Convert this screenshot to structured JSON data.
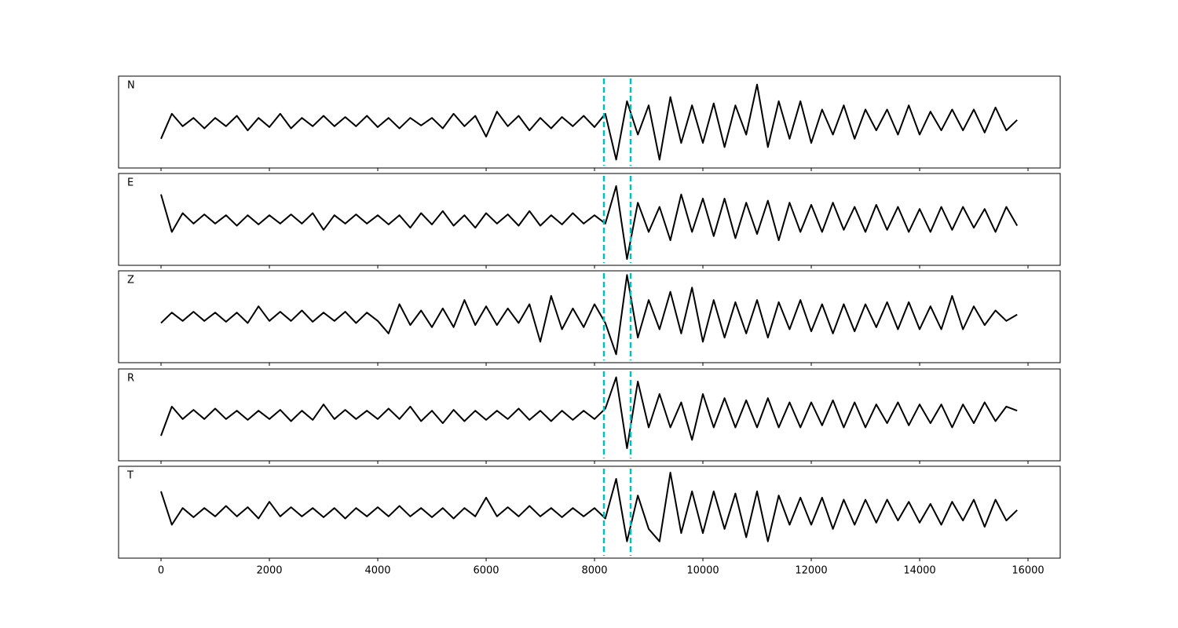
{
  "chart_data": [
    {
      "type": "line",
      "xlim": [
        -783,
        16594
      ],
      "xticks": [
        0,
        2000,
        4000,
        6000,
        8000,
        10000,
        12000,
        14000,
        16000
      ],
      "ylim": [
        -1.1,
        1.1
      ],
      "vlines": [
        8174,
        8667
      ],
      "vline_color": "#00bfbf",
      "x": [
        0,
        200,
        400,
        600,
        800,
        1000,
        1200,
        1400,
        1600,
        1800,
        2000,
        2200,
        2400,
        2600,
        2800,
        3000,
        3200,
        3400,
        3600,
        3800,
        4000,
        4200,
        4400,
        4600,
        4800,
        5000,
        5200,
        5400,
        5600,
        5800,
        6000,
        6200,
        6400,
        6600,
        6800,
        7000,
        7200,
        7400,
        7600,
        7800,
        8000,
        8200,
        8400,
        8600,
        8800,
        9000,
        9200,
        9400,
        9600,
        9800,
        10000,
        10200,
        10400,
        10600,
        10800,
        11000,
        11200,
        11400,
        11600,
        11800,
        12000,
        12200,
        12400,
        12600,
        12800,
        13000,
        13200,
        13400,
        13600,
        13800,
        14000,
        14200,
        14400,
        14600,
        14800,
        15000,
        15200,
        15400,
        15600,
        15800
      ],
      "series": [
        {
          "name": "N",
          "color": "#000000",
          "values": [
            -0.4,
            0.2,
            -0.1,
            0.1,
            -0.15,
            0.1,
            -0.1,
            0.15,
            -0.2,
            0.1,
            -0.12,
            0.2,
            -0.15,
            0.1,
            -0.1,
            0.15,
            -0.1,
            0.12,
            -0.1,
            0.15,
            -0.12,
            0.1,
            -0.15,
            0.1,
            -0.08,
            0.1,
            -0.15,
            0.2,
            -0.1,
            0.15,
            -0.35,
            0.25,
            -0.1,
            0.15,
            -0.2,
            0.1,
            -0.15,
            0.12,
            -0.1,
            0.15,
            -0.12,
            0.2,
            -0.9,
            0.5,
            -0.3,
            0.4,
            -0.9,
            0.6,
            -0.5,
            0.4,
            -0.5,
            0.45,
            -0.6,
            0.4,
            -0.3,
            0.9,
            -0.6,
            0.5,
            -0.4,
            0.5,
            -0.5,
            0.3,
            -0.3,
            0.4,
            -0.4,
            0.3,
            -0.2,
            0.3,
            -0.3,
            0.4,
            -0.3,
            0.25,
            -0.2,
            0.3,
            -0.2,
            0.3,
            -0.25,
            0.35,
            -0.2,
            0.05
          ]
        }
      ]
    },
    {
      "type": "line",
      "xlim": [
        -783,
        16594
      ],
      "xticks": [
        0,
        2000,
        4000,
        6000,
        8000,
        10000,
        12000,
        14000,
        16000
      ],
      "ylim": [
        -1.1,
        1.1
      ],
      "vlines": [
        8174,
        8667
      ],
      "vline_color": "#00bfbf",
      "x": [
        0,
        200,
        400,
        600,
        800,
        1000,
        1200,
        1400,
        1600,
        1800,
        2000,
        2200,
        2400,
        2600,
        2800,
        3000,
        3200,
        3400,
        3600,
        3800,
        4000,
        4200,
        4400,
        4600,
        4800,
        5000,
        5200,
        5400,
        5600,
        5800,
        6000,
        6200,
        6400,
        6600,
        6800,
        7000,
        7200,
        7400,
        7600,
        7800,
        8000,
        8200,
        8400,
        8600,
        8800,
        9000,
        9200,
        9400,
        9600,
        9800,
        10000,
        10200,
        10400,
        10600,
        10800,
        11000,
        11200,
        11400,
        11600,
        11800,
        12000,
        12200,
        12400,
        12600,
        12800,
        13000,
        13200,
        13400,
        13600,
        13800,
        14000,
        14200,
        14400,
        14600,
        14800,
        15000,
        15200,
        15400,
        15600,
        15800
      ],
      "series": [
        {
          "name": "E",
          "color": "#000000",
          "values": [
            0.6,
            -0.3,
            0.15,
            -0.1,
            0.12,
            -0.1,
            0.1,
            -0.15,
            0.1,
            -0.12,
            0.1,
            -0.1,
            0.12,
            -0.1,
            0.15,
            -0.25,
            0.1,
            -0.1,
            0.12,
            -0.1,
            0.1,
            -0.12,
            0.1,
            -0.2,
            0.15,
            -0.12,
            0.2,
            -0.15,
            0.1,
            -0.2,
            0.15,
            -0.1,
            0.12,
            -0.15,
            0.2,
            -0.15,
            0.1,
            -0.12,
            0.15,
            -0.1,
            0.1,
            -0.1,
            0.8,
            -0.95,
            0.4,
            -0.3,
            0.3,
            -0.5,
            0.6,
            -0.3,
            0.5,
            -0.4,
            0.5,
            -0.45,
            0.4,
            -0.35,
            0.45,
            -0.5,
            0.4,
            -0.3,
            0.35,
            -0.3,
            0.4,
            -0.25,
            0.3,
            -0.3,
            0.35,
            -0.25,
            0.3,
            -0.3,
            0.25,
            -0.3,
            0.3,
            -0.25,
            0.3,
            -0.2,
            0.25,
            -0.3,
            0.3,
            -0.15
          ]
        }
      ]
    },
    {
      "type": "line",
      "xlim": [
        -783,
        16594
      ],
      "xticks": [
        0,
        2000,
        4000,
        6000,
        8000,
        10000,
        12000,
        14000,
        16000
      ],
      "ylim": [
        -1.1,
        1.1
      ],
      "vlines": [
        8174,
        8667
      ],
      "vline_color": "#00bfbf",
      "x": [
        0,
        200,
        400,
        600,
        800,
        1000,
        1200,
        1400,
        1600,
        1800,
        2000,
        2200,
        2400,
        2600,
        2800,
        3000,
        3200,
        3400,
        3600,
        3800,
        4000,
        4200,
        4400,
        4600,
        4800,
        5000,
        5200,
        5400,
        5600,
        5800,
        6000,
        6200,
        6400,
        6600,
        6800,
        7000,
        7200,
        7400,
        7600,
        7800,
        8000,
        8200,
        8400,
        8600,
        8800,
        9000,
        9200,
        9400,
        9600,
        9800,
        10000,
        10200,
        10400,
        10600,
        10800,
        11000,
        11200,
        11400,
        11600,
        11800,
        12000,
        12200,
        12400,
        12600,
        12800,
        13000,
        13200,
        13400,
        13600,
        13800,
        14000,
        14200,
        14400,
        14600,
        14800,
        15000,
        15200,
        15400,
        15600,
        15800
      ],
      "series": [
        {
          "name": "Z",
          "color": "#000000",
          "values": [
            -0.15,
            0.1,
            -0.1,
            0.12,
            -0.1,
            0.1,
            -0.12,
            0.1,
            -0.15,
            0.25,
            -0.1,
            0.12,
            -0.1,
            0.15,
            -0.12,
            0.1,
            -0.1,
            0.12,
            -0.15,
            0.1,
            -0.1,
            -0.4,
            0.3,
            -0.2,
            0.15,
            -0.25,
            0.2,
            -0.25,
            0.4,
            -0.2,
            0.25,
            -0.2,
            0.2,
            -0.15,
            0.3,
            -0.6,
            0.5,
            -0.3,
            0.2,
            -0.25,
            0.3,
            -0.15,
            -0.9,
            1.0,
            -0.5,
            0.4,
            -0.3,
            0.6,
            -0.4,
            0.7,
            -0.6,
            0.4,
            -0.5,
            0.35,
            -0.4,
            0.4,
            -0.5,
            0.35,
            -0.3,
            0.4,
            -0.35,
            0.3,
            -0.4,
            0.3,
            -0.35,
            0.3,
            -0.25,
            0.35,
            -0.3,
            0.35,
            -0.3,
            0.25,
            -0.3,
            0.5,
            -0.3,
            0.25,
            -0.2,
            0.15,
            -0.1,
            0.05
          ]
        }
      ]
    },
    {
      "type": "line",
      "xlim": [
        -783,
        16594
      ],
      "xticks": [
        0,
        2000,
        4000,
        6000,
        8000,
        10000,
        12000,
        14000,
        16000
      ],
      "ylim": [
        -1.1,
        1.1
      ],
      "vlines": [
        8174,
        8667
      ],
      "vline_color": "#00bfbf",
      "x": [
        0,
        200,
        400,
        600,
        800,
        1000,
        1200,
        1400,
        1600,
        1800,
        2000,
        2200,
        2400,
        2600,
        2800,
        3000,
        3200,
        3400,
        3600,
        3800,
        4000,
        4200,
        4400,
        4600,
        4800,
        5000,
        5200,
        5400,
        5600,
        5800,
        6000,
        6200,
        6400,
        6600,
        6800,
        7000,
        7200,
        7400,
        7600,
        7800,
        8000,
        8200,
        8400,
        8600,
        8800,
        9000,
        9200,
        9400,
        9600,
        9800,
        10000,
        10200,
        10400,
        10600,
        10800,
        11000,
        11200,
        11400,
        11600,
        11800,
        12000,
        12200,
        12400,
        12600,
        12800,
        13000,
        13200,
        13400,
        13600,
        13800,
        14000,
        14200,
        14400,
        14600,
        14800,
        15000,
        15200,
        15400,
        15600,
        15800
      ],
      "series": [
        {
          "name": "R",
          "color": "#000000",
          "values": [
            -0.5,
            0.2,
            -0.1,
            0.12,
            -0.1,
            0.15,
            -0.1,
            0.1,
            -0.12,
            0.1,
            -0.1,
            0.12,
            -0.15,
            0.1,
            -0.12,
            0.25,
            -0.1,
            0.12,
            -0.1,
            0.1,
            -0.1,
            0.15,
            -0.1,
            0.2,
            -0.15,
            0.1,
            -0.2,
            0.12,
            -0.15,
            0.1,
            -0.12,
            0.1,
            -0.1,
            0.15,
            -0.12,
            0.1,
            -0.15,
            0.1,
            -0.12,
            0.1,
            -0.1,
            0.15,
            0.9,
            -0.8,
            0.8,
            -0.3,
            0.5,
            -0.3,
            0.3,
            -0.6,
            0.5,
            -0.3,
            0.4,
            -0.3,
            0.35,
            -0.3,
            0.4,
            -0.3,
            0.3,
            -0.3,
            0.3,
            -0.25,
            0.35,
            -0.3,
            0.3,
            -0.3,
            0.25,
            -0.2,
            0.3,
            -0.25,
            0.25,
            -0.2,
            0.25,
            -0.3,
            0.25,
            -0.2,
            0.3,
            -0.15,
            0.2,
            0.1
          ]
        }
      ]
    },
    {
      "type": "line",
      "xlim": [
        -783,
        16594
      ],
      "xticks": [
        0,
        2000,
        4000,
        6000,
        8000,
        10000,
        12000,
        14000,
        16000
      ],
      "ylim": [
        -1.1,
        1.1
      ],
      "vlines": [
        8174,
        8667
      ],
      "vline_color": "#00bfbf",
      "x": [
        0,
        200,
        400,
        600,
        800,
        1000,
        1200,
        1400,
        1600,
        1800,
        2000,
        2200,
        2400,
        2600,
        2800,
        3000,
        3200,
        3400,
        3600,
        3800,
        4000,
        4200,
        4400,
        4600,
        4800,
        5000,
        5200,
        5400,
        5600,
        5800,
        6000,
        6200,
        6400,
        6600,
        6800,
        7000,
        7200,
        7400,
        7600,
        7800,
        8000,
        8200,
        8400,
        8600,
        8800,
        9000,
        9200,
        9400,
        9600,
        9800,
        10000,
        10200,
        10400,
        10600,
        10800,
        11000,
        11200,
        11400,
        11600,
        11800,
        12000,
        12200,
        12400,
        12600,
        12800,
        13000,
        13200,
        13400,
        13600,
        13800,
        14000,
        14200,
        14400,
        14600,
        14800,
        15000,
        15200,
        15400,
        15600,
        15800
      ],
      "series": [
        {
          "name": "T",
          "color": "#000000",
          "values": [
            0.5,
            -0.3,
            0.1,
            -0.12,
            0.1,
            -0.1,
            0.15,
            -0.1,
            0.12,
            -0.15,
            0.25,
            -0.1,
            0.12,
            -0.1,
            0.1,
            -0.12,
            0.1,
            -0.15,
            0.1,
            -0.1,
            0.12,
            -0.1,
            0.15,
            -0.1,
            0.1,
            -0.12,
            0.1,
            -0.15,
            0.1,
            -0.1,
            0.35,
            -0.1,
            0.12,
            -0.1,
            0.15,
            -0.1,
            0.1,
            -0.12,
            0.1,
            -0.1,
            0.1,
            -0.15,
            0.8,
            -0.7,
            0.4,
            -0.4,
            -0.7,
            0.95,
            -0.5,
            0.5,
            -0.5,
            0.5,
            -0.4,
            0.45,
            -0.6,
            0.5,
            -0.7,
            0.4,
            -0.3,
            0.35,
            -0.3,
            0.35,
            -0.4,
            0.3,
            -0.3,
            0.3,
            -0.25,
            0.3,
            -0.2,
            0.25,
            -0.25,
            0.2,
            -0.3,
            0.25,
            -0.2,
            0.3,
            -0.35,
            0.3,
            -0.2,
            0.05
          ]
        }
      ]
    }
  ]
}
